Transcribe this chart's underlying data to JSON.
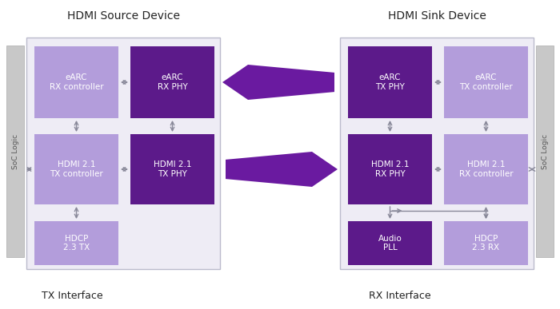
{
  "title_left": "HDMI Source Device",
  "title_right": "HDMI Sink Device",
  "label_left": "TX Interface",
  "label_right": "RX Interface",
  "soc_label": "SoC Logic",
  "bg_color": "#ffffff",
  "container_fill": "#eeecf5",
  "container_edge": "#bbbbcc",
  "light_purple": "#b39ddb",
  "dark_purple": "#5c1a8a",
  "arrow_color": "#6a1aa0",
  "text_white": "#ffffff",
  "soc_bar_color": "#c8c8c8",
  "soc_bar_edge": "#aaaaaa",
  "small_arrow_color": "#888899",
  "title_color": "#222222",
  "label_color": "#222222"
}
